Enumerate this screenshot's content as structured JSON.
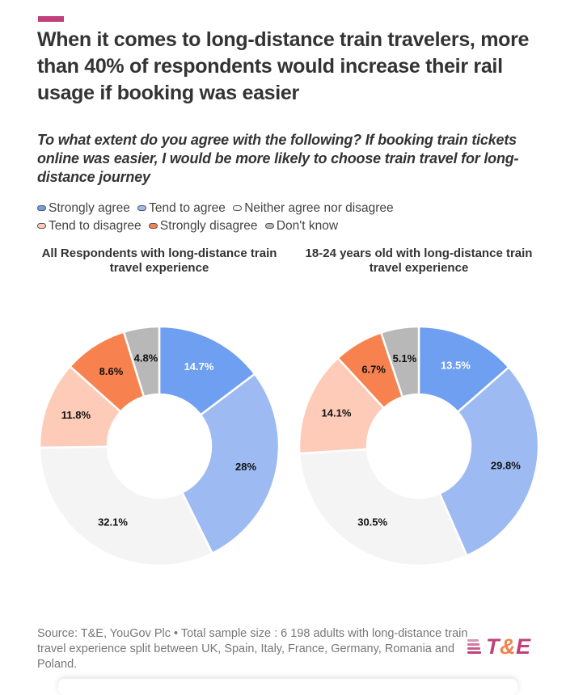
{
  "header": {
    "title": "When it comes to long-distance train travelers, more than 40% of respondents would increase their rail usage if booking was easier",
    "subtitle": "To what extent do you agree with the following? If booking train tickets online was easier, I would be more likely to choose train travel for long-distance journey",
    "accent_color": "#c0407a"
  },
  "legend": {
    "items": [
      {
        "label": "Strongly agree",
        "color": "#6f9ff0"
      },
      {
        "label": "Tend to agree",
        "color": "#9dbaf3"
      },
      {
        "label": "Neither agree nor disagree",
        "color": "#f4f4f4"
      },
      {
        "label": "Tend to disagree",
        "color": "#fdcbb8"
      },
      {
        "label": "Strongly disagree",
        "color": "#f8824f"
      },
      {
        "label": "Don't know",
        "color": "#b8b8b8"
      }
    ]
  },
  "chart_data": [
    {
      "type": "pie",
      "variant": "donut",
      "title": "All Respondents with long-distance train travel experience",
      "categories": [
        "Strongly agree",
        "Tend to agree",
        "Neither agree nor disagree",
        "Tend to disagree",
        "Strongly disagree",
        "Don't know"
      ],
      "values": [
        14.7,
        28,
        32.1,
        11.8,
        8.6,
        4.8
      ],
      "labels": [
        "14.7%",
        "28%",
        "32.1%",
        "11.8%",
        "8.6%",
        "4.8%"
      ],
      "label_colors": [
        "#ffffff",
        "#111111",
        "#111111",
        "#111111",
        "#111111",
        "#111111"
      ],
      "colors": [
        "#6f9ff0",
        "#9dbaf3",
        "#f4f4f4",
        "#fdcbb8",
        "#f8824f",
        "#b8b8b8"
      ],
      "legend": "top-left"
    },
    {
      "type": "pie",
      "variant": "donut",
      "title": "18-24 years old with long-distance train travel experience",
      "categories": [
        "Strongly agree",
        "Tend to agree",
        "Neither agree nor disagree",
        "Tend to disagree",
        "Strongly disagree",
        "Don't know"
      ],
      "values": [
        13.5,
        29.8,
        30.5,
        14.1,
        6.7,
        5.1
      ],
      "labels": [
        "13.5%",
        "29.8%",
        "30.5%",
        "14.1%",
        "6.7%",
        "5.1%"
      ],
      "label_colors": [
        "#ffffff",
        "#111111",
        "#111111",
        "#111111",
        "#111111",
        "#111111"
      ],
      "colors": [
        "#6f9ff0",
        "#9dbaf3",
        "#f4f4f4",
        "#fdcbb8",
        "#f8824f",
        "#b8b8b8"
      ],
      "legend": "top-left"
    }
  ],
  "footer": {
    "source": "Source: T&E, YouGov Plc • Total sample size : 6 198 adults with long-distance train travel experience split between UK, Spain, Italy, France, Germany, Romania and Poland.",
    "logo": {
      "t": "T",
      "amp": "&",
      "e": "E"
    }
  }
}
